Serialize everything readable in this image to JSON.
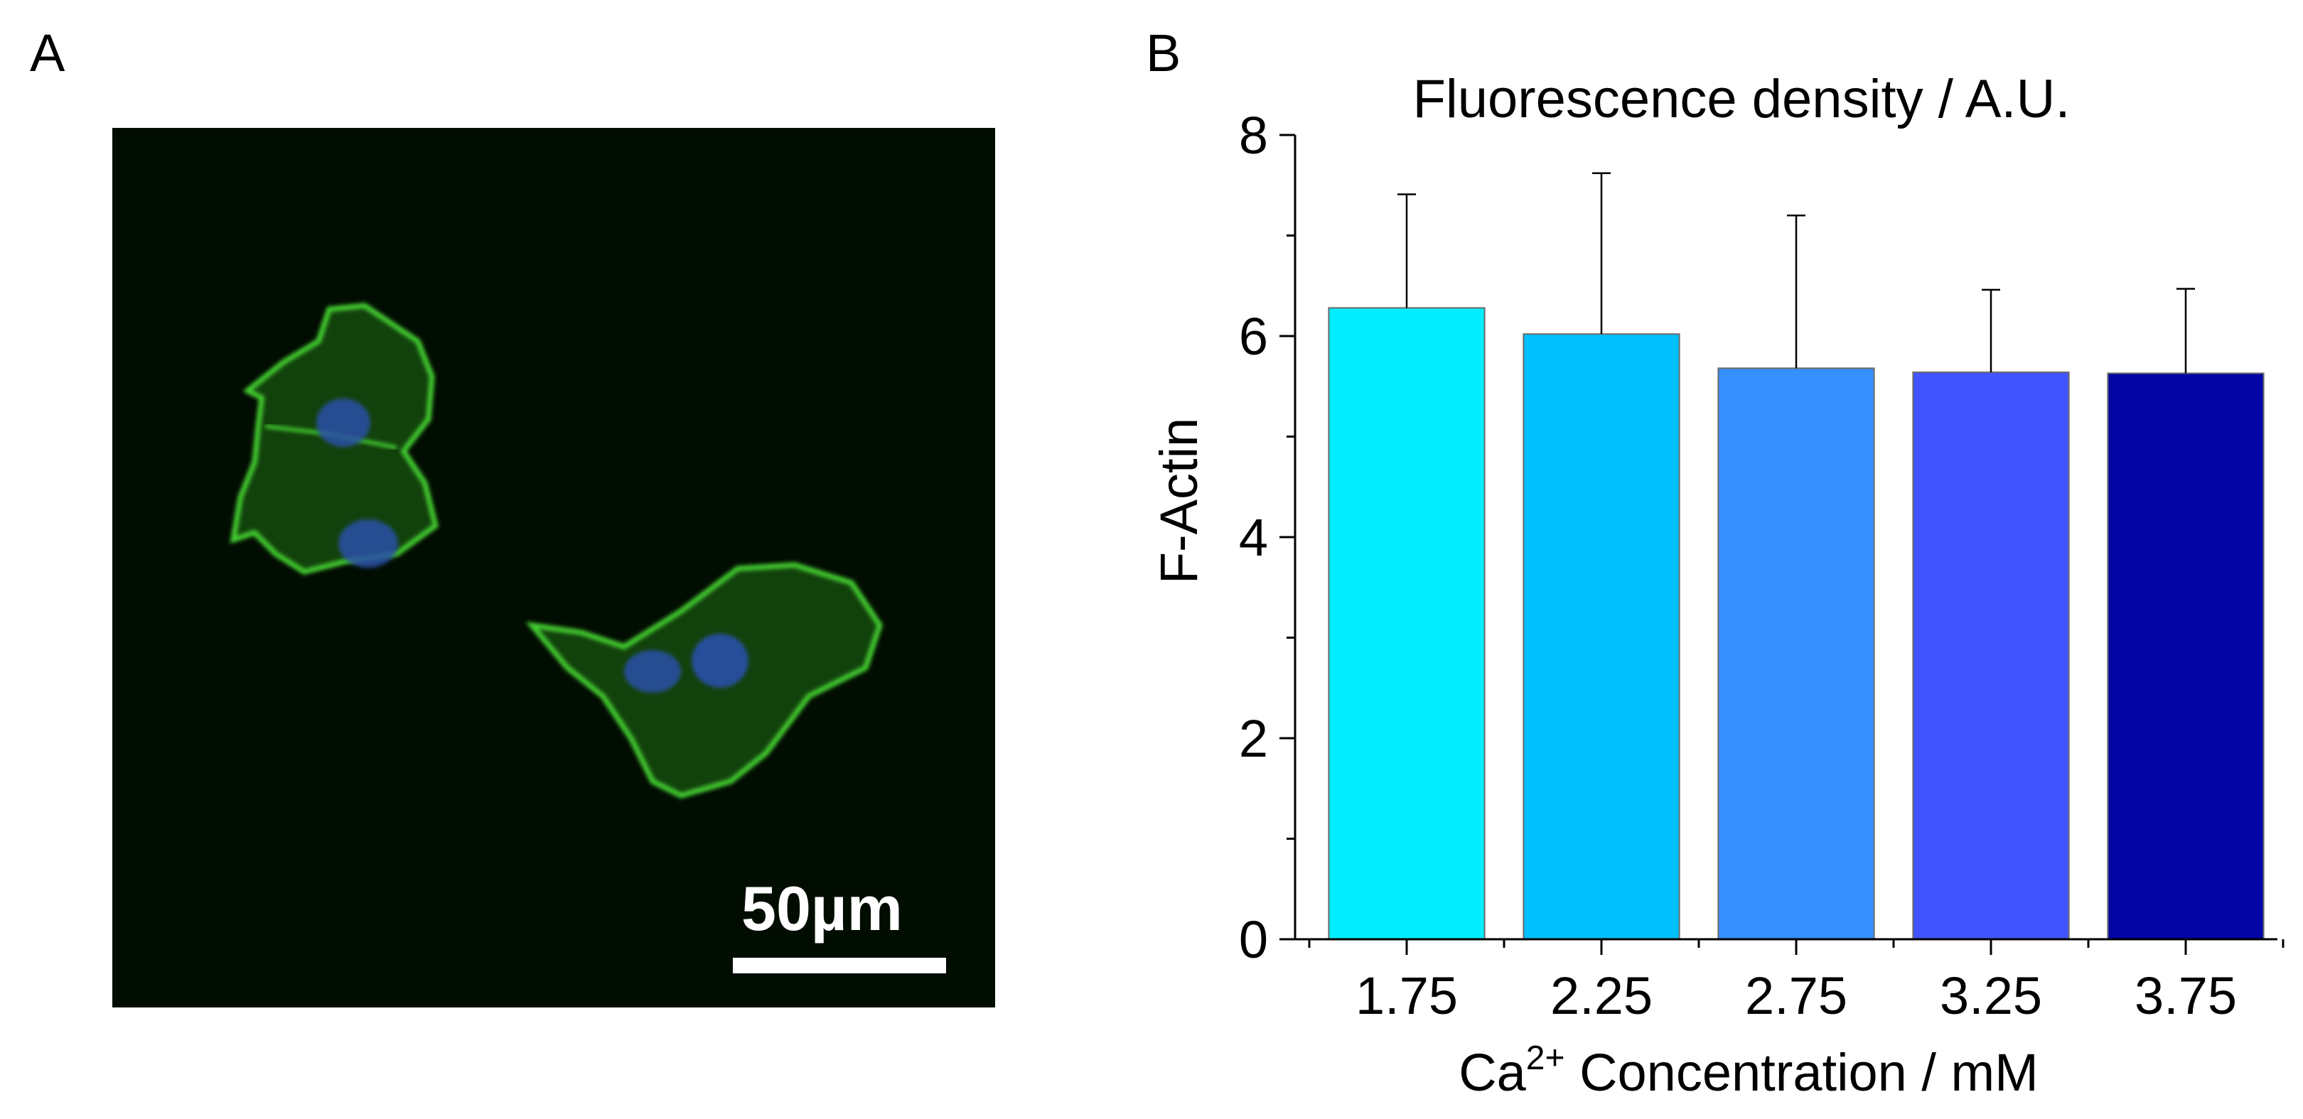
{
  "panels": {
    "a_label": "A",
    "b_label": "B"
  },
  "micrograph": {
    "scale_label": "50µm",
    "colors": {
      "background": "#020d02",
      "actin": "#39c72a",
      "nucleus": "#2a4fa8"
    }
  },
  "chart_data": {
    "type": "bar",
    "title": "Fluorescence density / A.U.",
    "ylabel": "F-Actin",
    "xlabel_main": "Ca",
    "xlabel_sup": "2+",
    "xlabel_rest": " Concentration / mM",
    "categories": [
      "1.75",
      "2.25",
      "2.75",
      "3.25",
      "3.75"
    ],
    "values": [
      6.28,
      6.02,
      5.68,
      5.64,
      5.63
    ],
    "errors": [
      1.13,
      1.6,
      1.52,
      0.82,
      0.84
    ],
    "colors": [
      "#00eeff",
      "#00bfff",
      "#3690ff",
      "#4254ff",
      "#0505a5"
    ],
    "ylim": [
      0,
      8
    ],
    "yticks": [
      0,
      2,
      4,
      6,
      8
    ]
  }
}
